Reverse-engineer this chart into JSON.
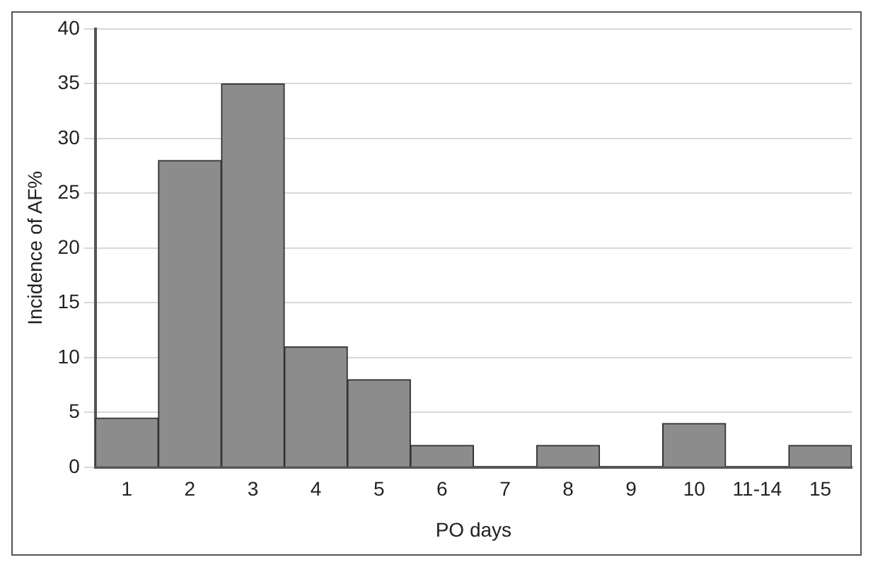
{
  "chart_data": {
    "type": "bar",
    "xlabel": "PO days",
    "ylabel": "Incidence of AF%",
    "categories": [
      "1",
      "2",
      "3",
      "4",
      "5",
      "6",
      "7",
      "8",
      "9",
      "10",
      "11-14",
      "15"
    ],
    "values": [
      4.5,
      28,
      35,
      11,
      8,
      2,
      0,
      2,
      0,
      4,
      0,
      2
    ],
    "color": "#8c8c8c",
    "ylim": [
      0,
      40
    ],
    "yticks": [
      0,
      5,
      10,
      15,
      20,
      25,
      30,
      35,
      40
    ],
    "grid": "y",
    "legend": false
  }
}
